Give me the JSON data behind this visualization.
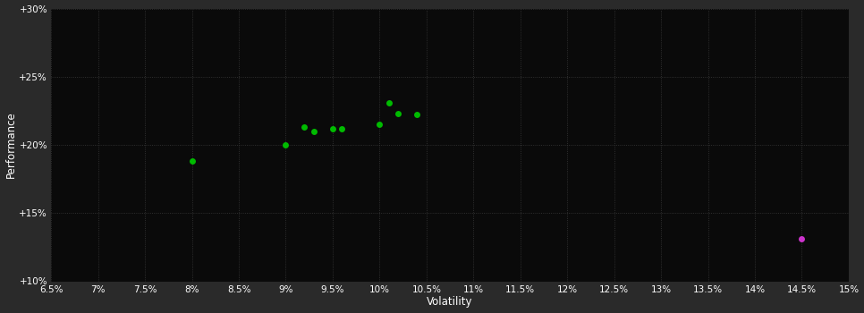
{
  "xlabel": "Volatility",
  "ylabel": "Performance",
  "outer_bg_color": "#2a2a2a",
  "plot_bg_color": "#0a0a0a",
  "grid_color": "#3a3a3a",
  "text_color": "#ffffff",
  "green_points": [
    [
      0.08,
      0.188
    ],
    [
      0.09,
      0.2
    ],
    [
      0.092,
      0.213
    ],
    [
      0.093,
      0.21
    ],
    [
      0.095,
      0.212
    ],
    [
      0.096,
      0.212
    ],
    [
      0.1,
      0.215
    ],
    [
      0.101,
      0.231
    ],
    [
      0.102,
      0.223
    ],
    [
      0.104,
      0.222
    ]
  ],
  "magenta_points": [
    [
      0.145,
      0.131
    ]
  ],
  "green_color": "#00bb00",
  "magenta_color": "#cc33cc",
  "xlim": [
    0.065,
    0.15
  ],
  "ylim": [
    0.1,
    0.3
  ],
  "xticks": [
    0.065,
    0.07,
    0.075,
    0.08,
    0.085,
    0.09,
    0.095,
    0.1,
    0.105,
    0.11,
    0.115,
    0.12,
    0.125,
    0.13,
    0.135,
    0.14,
    0.145,
    0.15
  ],
  "yticks": [
    0.1,
    0.15,
    0.2,
    0.25,
    0.3
  ],
  "ytick_labels": [
    "+10%",
    "+15%",
    "+20%",
    "+25%",
    "+30%"
  ],
  "xtick_labels": [
    "6.5%",
    "7%",
    "7.5%",
    "8%",
    "8.5%",
    "9%",
    "9.5%",
    "10%",
    "10.5%",
    "11%",
    "11.5%",
    "12%",
    "12.5%",
    "13%",
    "13.5%",
    "14%",
    "14.5%",
    "15%"
  ],
  "marker_size": 5,
  "tick_fontsize": 7.5,
  "label_fontsize": 8.5
}
